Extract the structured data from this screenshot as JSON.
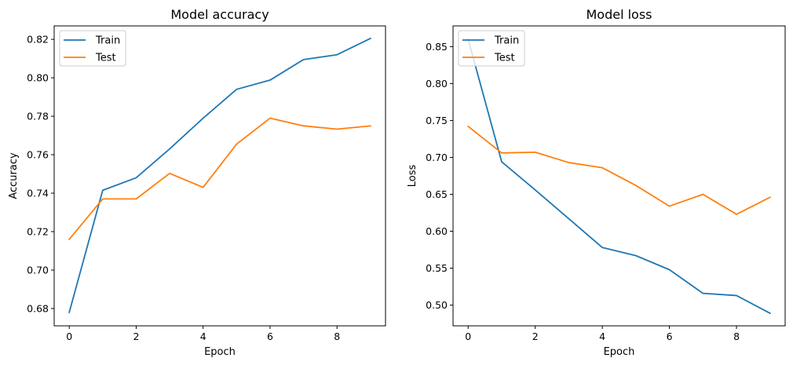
{
  "chart_data": [
    {
      "type": "line",
      "title": "Model accuracy",
      "xlabel": "Epoch",
      "ylabel": "Accuracy",
      "x": [
        0,
        1,
        2,
        3,
        4,
        5,
        6,
        7,
        8,
        9
      ],
      "xlim": [
        -0.45,
        9.45
      ],
      "ylim": [
        0.671,
        0.827
      ],
      "xticks": [
        0,
        2,
        4,
        6,
        8
      ],
      "xtick_labels": [
        "0",
        "2",
        "4",
        "6",
        "8"
      ],
      "yticks": [
        0.68,
        0.7,
        0.72,
        0.74,
        0.76,
        0.78,
        0.8,
        0.82
      ],
      "ytick_labels": [
        "0.68",
        "0.70",
        "0.72",
        "0.74",
        "0.76",
        "0.78",
        "0.80",
        "0.82"
      ],
      "grid": false,
      "legend_position": "top-left",
      "series": [
        {
          "name": "Train",
          "color": "#1f77b4",
          "values": [
            0.678,
            0.7415,
            0.748,
            0.763,
            0.779,
            0.794,
            0.7988,
            0.8095,
            0.812,
            0.8205
          ]
        },
        {
          "name": "Test",
          "color": "#ff7f0e",
          "values": [
            0.716,
            0.737,
            0.737,
            0.7503,
            0.743,
            0.7655,
            0.779,
            0.775,
            0.7733,
            0.775
          ]
        }
      ]
    },
    {
      "type": "line",
      "title": "Model loss",
      "xlabel": "Epoch",
      "ylabel": "Loss",
      "x": [
        0,
        1,
        2,
        3,
        4,
        5,
        6,
        7,
        8,
        9
      ],
      "xlim": [
        -0.45,
        9.45
      ],
      "ylim": [
        0.472,
        0.878
      ],
      "xticks": [
        0,
        2,
        4,
        6,
        8
      ],
      "xtick_labels": [
        "0",
        "2",
        "4",
        "6",
        "8"
      ],
      "yticks": [
        0.5,
        0.55,
        0.6,
        0.65,
        0.7,
        0.75,
        0.8,
        0.85
      ],
      "ytick_labels": [
        "0.50",
        "0.55",
        "0.60",
        "0.65",
        "0.70",
        "0.75",
        "0.80",
        "0.85"
      ],
      "grid": false,
      "legend_position": "top-left",
      "series": [
        {
          "name": "Train",
          "color": "#1f77b4",
          "values": [
            0.86,
            0.694,
            0.656,
            0.617,
            0.578,
            0.567,
            0.548,
            0.516,
            0.513,
            0.489
          ]
        },
        {
          "name": "Test",
          "color": "#ff7f0e",
          "values": [
            0.742,
            0.706,
            0.707,
            0.693,
            0.686,
            0.662,
            0.634,
            0.65,
            0.623,
            0.646
          ]
        }
      ]
    }
  ]
}
